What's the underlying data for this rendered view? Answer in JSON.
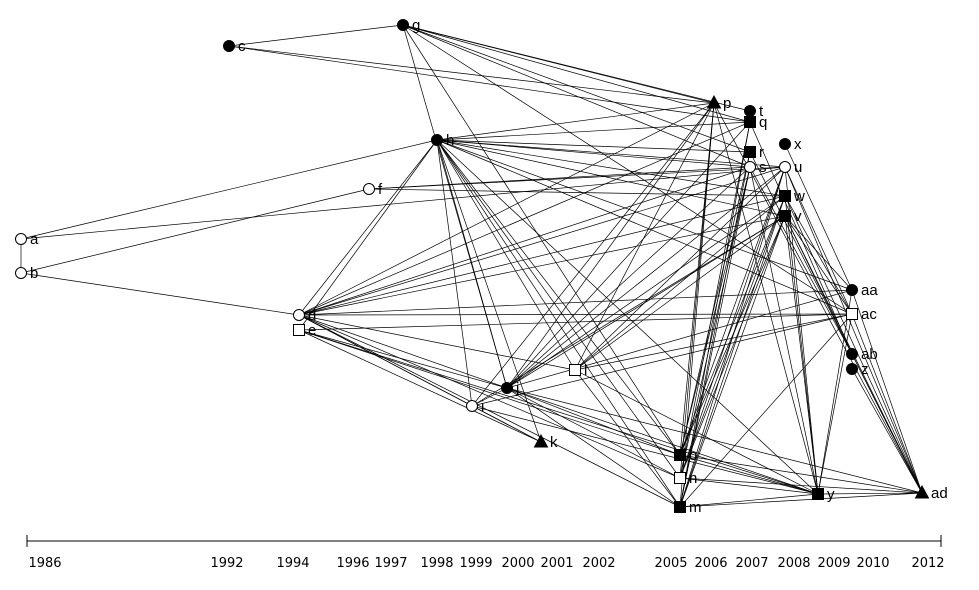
{
  "diagram": {
    "type": "network",
    "nodes": [
      {
        "id": "a",
        "label": "a",
        "shape": "circle",
        "fill": "white"
      },
      {
        "id": "b",
        "label": "b",
        "shape": "circle",
        "fill": "white"
      },
      {
        "id": "c",
        "label": "c",
        "shape": "circle",
        "fill": "black"
      },
      {
        "id": "d",
        "label": "d",
        "shape": "circle",
        "fill": "white"
      },
      {
        "id": "e",
        "label": "e",
        "shape": "square",
        "fill": "white"
      },
      {
        "id": "f",
        "label": "f",
        "shape": "circle",
        "fill": "white"
      },
      {
        "id": "g",
        "label": "g",
        "shape": "circle",
        "fill": "black"
      },
      {
        "id": "h",
        "label": "h",
        "shape": "circle",
        "fill": "black"
      },
      {
        "id": "i",
        "label": "i",
        "shape": "circle",
        "fill": "white"
      },
      {
        "id": "j",
        "label": "j",
        "shape": "circle",
        "fill": "black"
      },
      {
        "id": "k",
        "label": "k",
        "shape": "triangle",
        "fill": "black"
      },
      {
        "id": "l",
        "label": "l",
        "shape": "square",
        "fill": "white"
      },
      {
        "id": "m",
        "label": "m",
        "shape": "square",
        "fill": "black"
      },
      {
        "id": "n",
        "label": "n",
        "shape": "square",
        "fill": "white"
      },
      {
        "id": "o",
        "label": "o",
        "shape": "square",
        "fill": "black"
      },
      {
        "id": "p",
        "label": "p",
        "shape": "triangle",
        "fill": "black"
      },
      {
        "id": "q",
        "label": "q",
        "shape": "square",
        "fill": "black"
      },
      {
        "id": "r",
        "label": "r",
        "shape": "square",
        "fill": "black"
      },
      {
        "id": "s",
        "label": "s",
        "shape": "circle",
        "fill": "white"
      },
      {
        "id": "t",
        "label": "t",
        "shape": "circle",
        "fill": "black"
      },
      {
        "id": "u",
        "label": "u",
        "shape": "circle",
        "fill": "white"
      },
      {
        "id": "v",
        "label": "v",
        "shape": "square",
        "fill": "black"
      },
      {
        "id": "w",
        "label": "w",
        "shape": "square",
        "fill": "black"
      },
      {
        "id": "x",
        "label": "x",
        "shape": "circle",
        "fill": "black"
      },
      {
        "id": "y",
        "label": "y",
        "shape": "square",
        "fill": "black"
      },
      {
        "id": "z",
        "label": "z",
        "shape": "circle",
        "fill": "black"
      },
      {
        "id": "aa",
        "label": "aa",
        "shape": "circle",
        "fill": "black"
      },
      {
        "id": "ab",
        "label": "ab",
        "shape": "circle",
        "fill": "black"
      },
      {
        "id": "ac",
        "label": "ac",
        "shape": "square",
        "fill": "white"
      },
      {
        "id": "ad",
        "label": "ad",
        "shape": "triangle",
        "fill": "black"
      }
    ],
    "edges": [
      [
        "a",
        "b"
      ],
      [
        "a",
        "h"
      ],
      [
        "a",
        "u"
      ],
      [
        "b",
        "f"
      ],
      [
        "b",
        "d"
      ],
      [
        "c",
        "g"
      ],
      [
        "c",
        "p"
      ],
      [
        "c",
        "q"
      ],
      [
        "g",
        "p"
      ],
      [
        "g",
        "t"
      ],
      [
        "g",
        "q"
      ],
      [
        "g",
        "r"
      ],
      [
        "g",
        "s"
      ],
      [
        "g",
        "j"
      ],
      [
        "g",
        "o"
      ],
      [
        "g",
        "ac"
      ],
      [
        "f",
        "s"
      ],
      [
        "f",
        "u"
      ],
      [
        "f",
        "w"
      ],
      [
        "h",
        "p"
      ],
      [
        "h",
        "q"
      ],
      [
        "h",
        "r"
      ],
      [
        "h",
        "s"
      ],
      [
        "h",
        "u"
      ],
      [
        "h",
        "v"
      ],
      [
        "h",
        "w"
      ],
      [
        "h",
        "d"
      ],
      [
        "h",
        "e"
      ],
      [
        "h",
        "i"
      ],
      [
        "h",
        "j"
      ],
      [
        "h",
        "k"
      ],
      [
        "h",
        "l"
      ],
      [
        "h",
        "m"
      ],
      [
        "h",
        "n"
      ],
      [
        "h",
        "o"
      ],
      [
        "h",
        "y"
      ],
      [
        "h",
        "aa"
      ],
      [
        "h",
        "ac"
      ],
      [
        "d",
        "p"
      ],
      [
        "d",
        "q"
      ],
      [
        "d",
        "s"
      ],
      [
        "d",
        "u"
      ],
      [
        "d",
        "v"
      ],
      [
        "d",
        "w"
      ],
      [
        "d",
        "aa"
      ],
      [
        "d",
        "ac"
      ],
      [
        "d",
        "l"
      ],
      [
        "d",
        "j"
      ],
      [
        "d",
        "i"
      ],
      [
        "d",
        "k"
      ],
      [
        "d",
        "m"
      ],
      [
        "d",
        "n"
      ],
      [
        "e",
        "j"
      ],
      [
        "e",
        "k"
      ],
      [
        "e",
        "o"
      ],
      [
        "e",
        "y"
      ],
      [
        "e",
        "ac"
      ],
      [
        "i",
        "j"
      ],
      [
        "i",
        "k"
      ],
      [
        "i",
        "p"
      ],
      [
        "i",
        "v"
      ],
      [
        "i",
        "y"
      ],
      [
        "i",
        "ac"
      ],
      [
        "j",
        "p"
      ],
      [
        "j",
        "q"
      ],
      [
        "j",
        "s"
      ],
      [
        "j",
        "u"
      ],
      [
        "j",
        "v"
      ],
      [
        "j",
        "w"
      ],
      [
        "j",
        "m"
      ],
      [
        "j",
        "n"
      ],
      [
        "j",
        "o"
      ],
      [
        "j",
        "y"
      ],
      [
        "j",
        "ad"
      ],
      [
        "j",
        "aa"
      ],
      [
        "l",
        "p"
      ],
      [
        "l",
        "u"
      ],
      [
        "l",
        "v"
      ],
      [
        "l",
        "w"
      ],
      [
        "l",
        "ac"
      ],
      [
        "l",
        "m"
      ],
      [
        "l",
        "y"
      ],
      [
        "p",
        "o"
      ],
      [
        "p",
        "n"
      ],
      [
        "p",
        "m"
      ],
      [
        "p",
        "y"
      ],
      [
        "p",
        "ad"
      ],
      [
        "q",
        "n"
      ],
      [
        "q",
        "m"
      ],
      [
        "q",
        "ab"
      ],
      [
        "r",
        "o"
      ],
      [
        "r",
        "m"
      ],
      [
        "r",
        "ad"
      ],
      [
        "s",
        "o"
      ],
      [
        "s",
        "n"
      ],
      [
        "s",
        "m"
      ],
      [
        "s",
        "y"
      ],
      [
        "s",
        "ab"
      ],
      [
        "u",
        "o"
      ],
      [
        "u",
        "n"
      ],
      [
        "u",
        "m"
      ],
      [
        "u",
        "y"
      ],
      [
        "u",
        "ad"
      ],
      [
        "u",
        "ac"
      ],
      [
        "v",
        "o"
      ],
      [
        "v",
        "n"
      ],
      [
        "v",
        "m"
      ],
      [
        "v",
        "y"
      ],
      [
        "v",
        "ad"
      ],
      [
        "v",
        "aa"
      ],
      [
        "v",
        "ac"
      ],
      [
        "v",
        "ab"
      ],
      [
        "w",
        "o"
      ],
      [
        "w",
        "n"
      ],
      [
        "w",
        "m"
      ],
      [
        "w",
        "y"
      ],
      [
        "w",
        "ad"
      ],
      [
        "w",
        "ac"
      ],
      [
        "o",
        "y"
      ],
      [
        "o",
        "ad"
      ],
      [
        "n",
        "y"
      ],
      [
        "n",
        "ad"
      ],
      [
        "m",
        "y"
      ],
      [
        "m",
        "ad"
      ],
      [
        "y",
        "ad"
      ],
      [
        "y",
        "ac"
      ],
      [
        "y",
        "aa"
      ],
      [
        "aa",
        "ad"
      ],
      [
        "ab",
        "ad"
      ],
      [
        "ac",
        "ad"
      ],
      [
        "ac",
        "m"
      ],
      [
        "x",
        "aa"
      ],
      [
        "z",
        "ad"
      ]
    ]
  },
  "timeline": {
    "years": [
      "1986",
      "1992",
      "1994",
      "1996",
      "1997",
      "1998",
      "1999",
      "2000",
      "2001",
      "2002",
      "2005",
      "2006",
      "2007",
      "2008",
      "2009",
      "2010",
      "2012"
    ]
  }
}
